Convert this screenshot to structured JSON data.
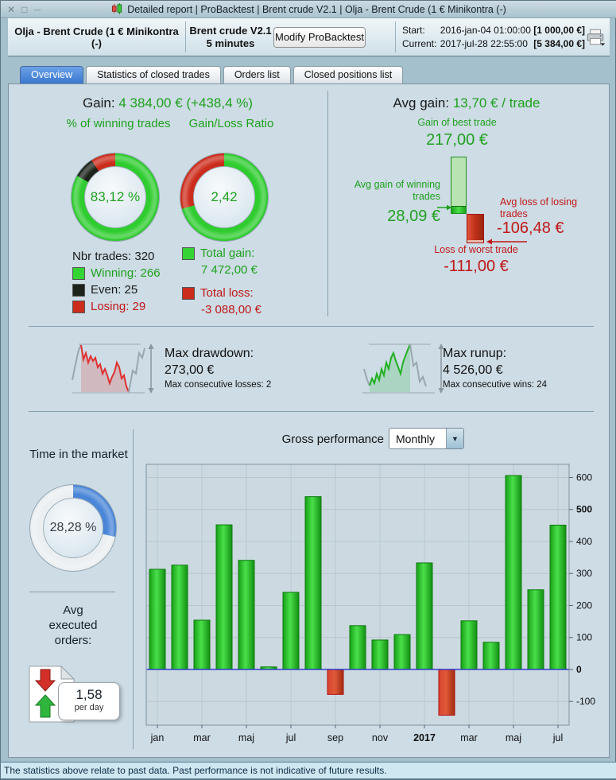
{
  "window": {
    "title": "Detailed report  |  ProBacktest  |  Brent crude V2.1  |  Olja - Brent Crude (1 € Minikontra (-)",
    "controls": {
      "close": "✕",
      "maximize": "□",
      "minimize": "—"
    }
  },
  "header": {
    "instrument": "Olja - Brent Crude (1 € Minikontra (-)",
    "system_name": "Brent crude V2.1",
    "timeframe": "5 minutes",
    "modify_button": "Modify ProBacktest",
    "start_label": "Start:",
    "start_time": "2016-jan-04 01:00:00",
    "start_amount": "[1 000,00 €]",
    "current_label": "Current:",
    "current_time": "2017-jul-28 22:55:00",
    "current_amount": "[5 384,00 €]"
  },
  "tabs": [
    {
      "label": "Overview",
      "active": true
    },
    {
      "label": "Statistics of closed trades",
      "active": false
    },
    {
      "label": "Orders list",
      "active": false
    },
    {
      "label": "Closed positions list",
      "active": false
    }
  ],
  "overview": {
    "gain_label": "Gain:",
    "gain_value": "4 384,00 € (+438,4 %)",
    "winning_donut": {
      "title": "% of winning trades",
      "center": "83,12 %",
      "segments": [
        {
          "name": "Winning",
          "pct": 83.12,
          "color": "#2ecc2e"
        },
        {
          "name": "Even",
          "pct": 7.82,
          "color": "#1b231b"
        },
        {
          "name": "Losing",
          "pct": 9.06,
          "color": "#cc2c1c"
        }
      ]
    },
    "ratio_donut": {
      "title": "Gain/Loss Ratio",
      "center": "2,42",
      "segments": [
        {
          "name": "Total gain",
          "pct": 70.75,
          "color": "#2ecc2e"
        },
        {
          "name": "Total loss",
          "pct": 29.25,
          "color": "#cc2c1c"
        }
      ]
    },
    "trades_legend": {
      "total_label": "Nbr trades: 320",
      "items": [
        {
          "label": "Winning: 266",
          "color": "#35d435",
          "text_color": "#1fa11f"
        },
        {
          "label": "Even: 25",
          "color": "#1b231b",
          "text_color": "#111111"
        },
        {
          "label": "Losing: 29",
          "color": "#cc2c1c",
          "text_color": "#c01818"
        }
      ]
    },
    "totals_legend": [
      {
        "label": "Total gain:",
        "value": "7 472,00 €",
        "color": "#35d435",
        "text_color": "#1fa11f"
      },
      {
        "label": "Total loss:",
        "value": "-3 088,00 €",
        "color": "#cc2c1c",
        "text_color": "#c01818"
      }
    ],
    "avg_gain": {
      "header_label": "Avg gain:",
      "header_value": "13,70 € / trade",
      "best_label": "Gain of best trade",
      "best_value": "217,00 €",
      "best": 217,
      "avg_win_label": "Avg gain of winning trades",
      "avg_win_value": "28,09 €",
      "avg_win": 28.09,
      "avg_loss_label": "Avg loss of losing trades",
      "avg_loss_value": "-106,48 €",
      "avg_loss": -106.48,
      "worst_label": "Loss of worst trade",
      "worst_value": "-111,00 €",
      "worst": -111
    },
    "drawdown": {
      "label": "Max drawdown:",
      "value": "273,00 €",
      "sub": "Max consecutive losses: 2"
    },
    "runup": {
      "label": "Max runup:",
      "value": "4 526,00 €",
      "sub": "Max consecutive wins: 24"
    },
    "time_in_market": {
      "title": "Time in the market",
      "center": "28,28 %",
      "segments": [
        {
          "name": "In market",
          "pct": 28.28,
          "color": "#4a86d8"
        },
        {
          "name": "Out of market",
          "pct": 71.72,
          "color": "#ebeff1"
        }
      ]
    },
    "avg_orders": {
      "title": "Avg executed orders:",
      "value": "1,58",
      "unit": "per day"
    },
    "gross_performance": {
      "label": "Gross performance",
      "period": "Monthly"
    }
  },
  "chart_data": {
    "type": "bar",
    "title": "Gross performance (Monthly)",
    "categories": [
      "2016-jan",
      "2016-feb",
      "2016-mar",
      "2016-apr",
      "2016-maj",
      "2016-jun",
      "2016-jul",
      "2016-aug",
      "2016-sep",
      "2016-okt",
      "2016-nov",
      "2016-dec",
      "2017-jan",
      "2017-feb",
      "2017-mar",
      "2017-apr",
      "2017-maj",
      "2017-jun",
      "2017-jul"
    ],
    "values": [
      313,
      326,
      154,
      452,
      341,
      8,
      241,
      540,
      -78,
      137,
      92,
      109,
      333,
      -143,
      152,
      85,
      606,
      249,
      451
    ],
    "tick_labels": [
      "jan",
      "",
      "mar",
      "",
      "maj",
      "",
      "jul",
      "",
      "sep",
      "",
      "nov",
      "",
      "2017",
      "",
      "mar",
      "",
      "maj",
      "",
      "jul"
    ],
    "bold_x_label": "2017",
    "ylim": [
      -174,
      641
    ],
    "yticks": [
      -100,
      0,
      100,
      200,
      300,
      400,
      500,
      600
    ],
    "bold_yticks": [
      0,
      500
    ],
    "grid": true,
    "positive_color": "#3ddd3d",
    "negative_color": "#cc3018",
    "zero_line_color": "#2830cc"
  },
  "colors": {
    "green_text": "#1fa11f",
    "red_text": "#c01818",
    "panel_bg": "#cddce5",
    "accent_blue": "#4a86d8"
  },
  "footer": {
    "disclaimer": "The statistics above relate to past data. Past performance is not indicative of future results."
  }
}
